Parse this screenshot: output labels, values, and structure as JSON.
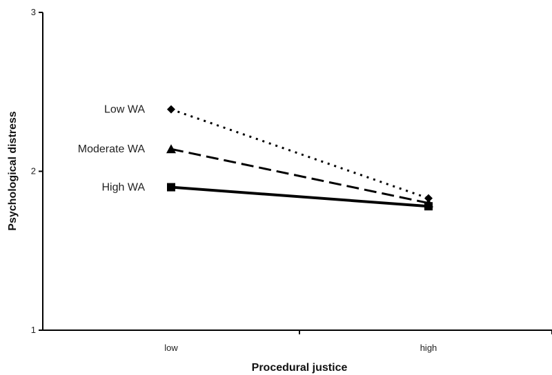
{
  "chart_data": {
    "type": "line",
    "title": "",
    "xlabel": "Procedural justice",
    "ylabel": "Psychological distress",
    "categories": [
      "low",
      "high"
    ],
    "ylim": [
      1,
      3
    ],
    "yticks": [
      1,
      2,
      3
    ],
    "grid": false,
    "legend": "inline labels at left of lines",
    "series": [
      {
        "name": "Low WA",
        "values": [
          2.39,
          1.83
        ],
        "marker": "diamond",
        "dash": "dotted"
      },
      {
        "name": "Moderate WA",
        "values": [
          2.14,
          1.8
        ],
        "marker": "triangle",
        "dash": "dashed"
      },
      {
        "name": "High WA",
        "values": [
          1.9,
          1.78
        ],
        "marker": "square",
        "dash": "solid"
      }
    ]
  }
}
